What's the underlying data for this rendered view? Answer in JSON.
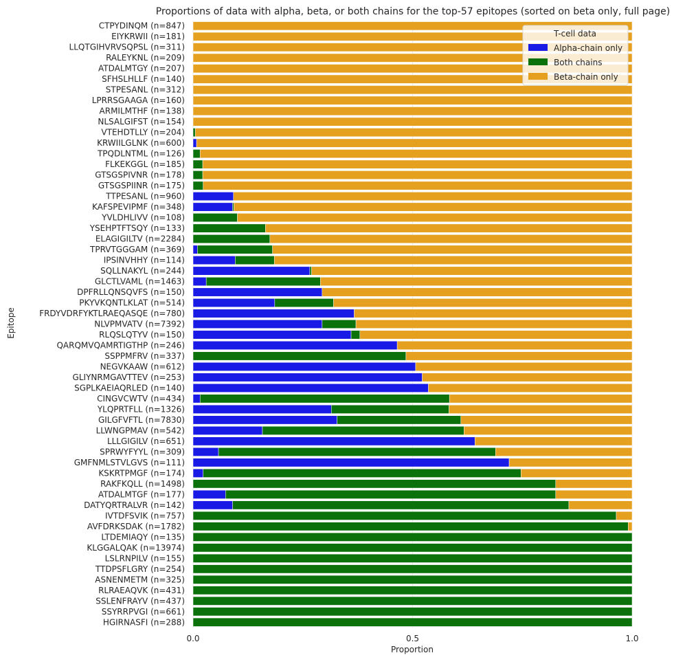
{
  "chart_data": {
    "type": "bar",
    "orientation": "horizontal",
    "stacked": true,
    "title": "Proportions of data with alpha, beta, or both chains for the top-57 epitopes (sorted on beta only, full page)",
    "xlabel": "Proportion",
    "ylabel": "Epitope",
    "xlim": [
      0,
      1
    ],
    "xticks": [
      "0.0",
      "0.5",
      "1.0"
    ],
    "xtick_values": [
      0,
      0.5,
      1
    ],
    "grid": "vertical",
    "legend_title": "T-cell data",
    "legend_position": "top-right",
    "categories": [
      "CTPYDINQM (n=847)",
      "EIYKRWII (n=181)",
      "LLQTGIHVRVSQPSL (n=311)",
      "RALEYKNL (n=209)",
      "ATDALMTGY (n=207)",
      "SFHSLHLLF (n=140)",
      "STPESANL (n=312)",
      "LPRRSGAAGA (n=160)",
      "ARMILMTHF (n=138)",
      "NLSALGIFST (n=154)",
      "VTEHDTLLY (n=204)",
      "KRWIILGLNK (n=600)",
      "TPQDLNTML (n=126)",
      "FLKEKGGL (n=185)",
      "GTSGSPIVNR (n=178)",
      "GTSGSPIINR (n=175)",
      "TTPESANL (n=960)",
      "KAFSPEVIPMF (n=348)",
      "YVLDHLIVV (n=108)",
      "YSEHPTFTSQY (n=133)",
      "ELAGIGILTV (n=2284)",
      "TPRVTGGGAM (n=369)",
      "IPSINVHHY (n=114)",
      "SQLLNAKYL (n=244)",
      "GLCTLVAML (n=1463)",
      "DPFRLLQNSQVFS (n=150)",
      "PKYVKQNTLKLAT (n=514)",
      "FRDYVDRFYKTLRAEQASQE (n=780)",
      "NLVPMVATV (n=7392)",
      "RLQSLQTYV (n=150)",
      "QARQMVQAMRTIGTHP (n=246)",
      "SSPPMFRV (n=337)",
      "NEGVKAAW (n=612)",
      "GLIYNRMGAVTTEV (n=253)",
      "SGPLKAEIAQRLED (n=140)",
      "CINGVCWTV (n=434)",
      "YLQPRTFLL (n=1326)",
      "GILGFVFTL (n=7830)",
      "LLWNGPMAV (n=542)",
      "LLLGIGILV (n=651)",
      "SPRWYFYYL (n=309)",
      "GMFNMLSTVLGVS (n=111)",
      "KSKRTPMGF (n=174)",
      "RAKFKQLL (n=1498)",
      "ATDALMTGF (n=177)",
      "DATYQRTRALVR (n=142)",
      "IVTDFSVIK (n=757)",
      "AVFDRKSDAK (n=1782)",
      "LTDEMIAQY (n=135)",
      "KLGGALQAK (n=13974)",
      "LSLRNPILV (n=155)",
      "TTDPSFLGRY (n=254)",
      "ASNENMETM (n=325)",
      "RLRAEAQVK (n=431)",
      "SSLENFRAYV (n=437)",
      "SSYRRPVGI (n=661)",
      "HGIRNASFI (n=288)"
    ],
    "series": [
      {
        "name": "Alpha-chain only",
        "color": "#1a1ae6",
        "values": [
          0,
          0,
          0,
          0,
          0,
          0,
          0,
          0,
          0,
          0,
          0,
          0.008,
          0,
          0,
          0,
          0,
          0.092,
          0.09,
          0,
          0,
          0,
          0.01,
          0.096,
          0.266,
          0.03,
          0.294,
          0.186,
          0.367,
          0.294,
          0.36,
          0.465,
          0,
          0.507,
          0.522,
          0.536,
          0.016,
          0.315,
          0.328,
          0.158,
          0.642,
          0.058,
          0.72,
          0.023,
          0,
          0.074,
          0.09,
          0,
          0,
          0,
          0,
          0,
          0,
          0,
          0,
          0,
          0,
          0
        ]
      },
      {
        "name": "Both chains",
        "color": "#0b720b",
        "values": [
          0,
          0,
          0,
          0,
          0,
          0,
          0,
          0,
          0,
          0,
          0.005,
          0,
          0.016,
          0.022,
          0.022,
          0.023,
          0,
          0.003,
          0.101,
          0.165,
          0.175,
          0.171,
          0.089,
          0.004,
          0.26,
          0,
          0.134,
          0,
          0.077,
          0.02,
          0,
          0.485,
          0,
          0,
          0,
          0.568,
          0.268,
          0.282,
          0.459,
          0,
          0.631,
          0,
          0.724,
          0.826,
          0.752,
          0.766,
          0.964,
          0.991,
          1,
          1,
          1,
          1,
          1,
          1,
          1,
          1,
          1
        ]
      },
      {
        "name": "Beta-chain only",
        "color": "#e5a020",
        "values": [
          1,
          1,
          1,
          1,
          1,
          1,
          1,
          1,
          1,
          1,
          0.995,
          0.992,
          0.984,
          0.978,
          0.978,
          0.977,
          0.908,
          0.907,
          0.899,
          0.835,
          0.825,
          0.819,
          0.815,
          0.73,
          0.71,
          0.706,
          0.68,
          0.633,
          0.629,
          0.62,
          0.535,
          0.515,
          0.493,
          0.478,
          0.464,
          0.416,
          0.417,
          0.39,
          0.383,
          0.358,
          0.311,
          0.28,
          0.253,
          0.174,
          0.174,
          0.144,
          0.036,
          0.009,
          0,
          0,
          0,
          0,
          0,
          0,
          0,
          0,
          0
        ]
      }
    ]
  }
}
